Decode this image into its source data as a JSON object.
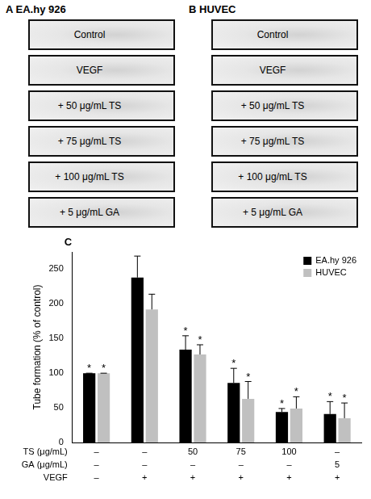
{
  "image_panels": [
    {
      "letter": "A",
      "title": "EA.hy 926",
      "rows": [
        "Control",
        "VEGF",
        "+ 50 μg/mL TS",
        "+ 75 μg/mL TS",
        "+ 100 μg/mL TS",
        "+ 5 μg/mL GA"
      ]
    },
    {
      "letter": "B",
      "title": "HUVEC",
      "rows": [
        "Control",
        "VEGF",
        "+ 50 μg/mL TS",
        "+ 75 μg/mL TS",
        "+ 100 μg/mL TS",
        "+ 5 μg/mL GA"
      ]
    }
  ],
  "chart_data": {
    "type": "bar",
    "panel_letter": "C",
    "y_label": "Tube formation (% of control)",
    "x_rows": [
      "TS (μg/mL)",
      "GA (μg/mL)",
      "VEGF"
    ],
    "categories": [
      [
        "–",
        "–",
        "–"
      ],
      [
        "–",
        "–",
        "+"
      ],
      [
        "50",
        "–",
        "+"
      ],
      [
        "75",
        "–",
        "+"
      ],
      [
        "100",
        "–",
        "+"
      ],
      [
        "–",
        "5",
        "+"
      ]
    ],
    "series": [
      {
        "name": "EA.hy 926",
        "color": "#000000",
        "values": [
          100,
          238,
          134,
          86,
          44,
          41
        ],
        "errors": [
          0,
          31,
          20,
          21,
          5,
          18
        ],
        "marks": [
          "*",
          null,
          "*",
          "*",
          "*",
          "*"
        ]
      },
      {
        "name": "HUVEC",
        "color": "#c0c0c0",
        "values": [
          100,
          192,
          127,
          63,
          49,
          35
        ],
        "errors": [
          0,
          22,
          14,
          25,
          17,
          22
        ],
        "marks": [
          "*",
          null,
          "*",
          "*",
          "*",
          "*"
        ]
      }
    ],
    "ylim": [
      0,
      275
    ],
    "yticks": [
      0,
      50,
      100,
      150,
      200,
      250
    ],
    "grid": false,
    "legend": "upper right"
  }
}
